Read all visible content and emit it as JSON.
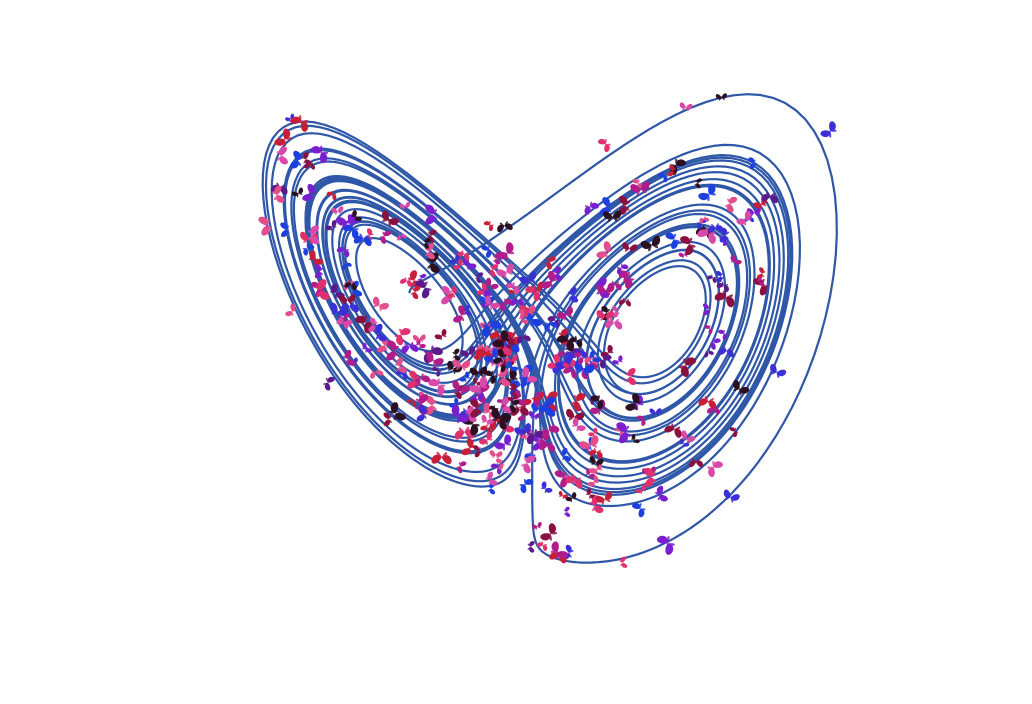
{
  "scene": {
    "subject": "lorenz-attractor-with-butterflies",
    "background_color": "#ffffff",
    "trajectory_color": "#2f57a8",
    "butterfly_palette": [
      "#e0306e",
      "#b01c8a",
      "#7a1fd0",
      "#3b2fd6",
      "#1d3fe0",
      "#8a1040",
      "#2a1020",
      "#c81e3a",
      "#d94aa8",
      "#5a1a8a",
      "#e34d8c"
    ],
    "butterfly_count": 360
  }
}
